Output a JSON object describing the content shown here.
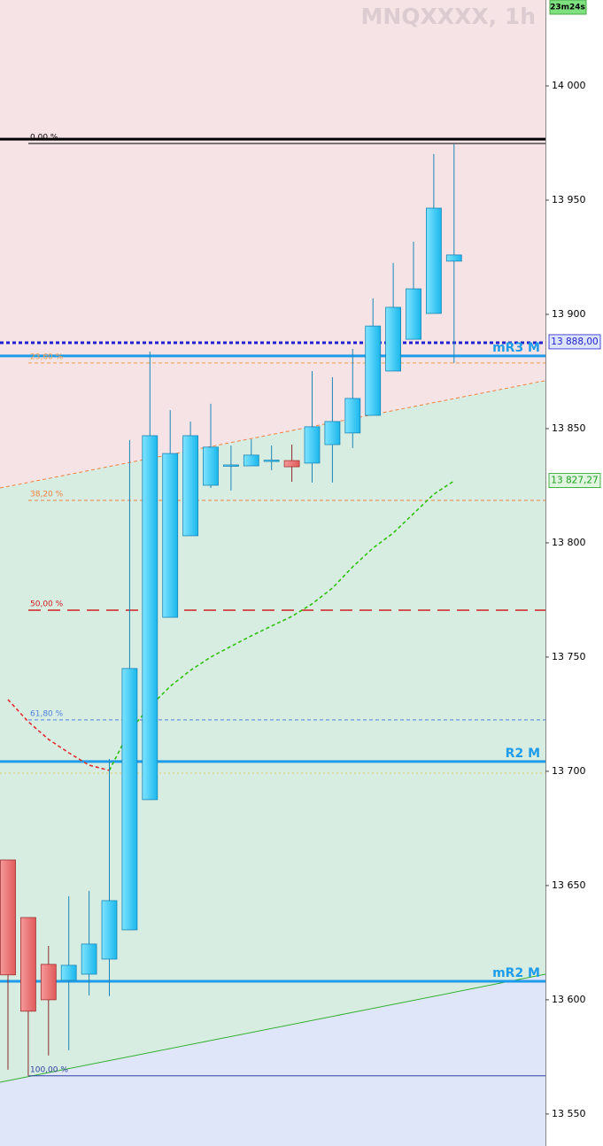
{
  "chart_data": {
    "type": "candlestick",
    "title": "MNQXXXX, 1h",
    "timer": "23m24s",
    "ylim": [
      13536,
      14037.6
    ],
    "yticks": [
      {
        "value": 14000,
        "label": "14 000"
      },
      {
        "value": 13950,
        "label": "13 950"
      },
      {
        "value": 13900,
        "label": "13 900"
      },
      {
        "value": 13850,
        "label": "13 850"
      },
      {
        "value": 13800,
        "label": "13 800"
      },
      {
        "value": 13750,
        "label": "13 750"
      },
      {
        "value": 13700,
        "label": "13 700"
      },
      {
        "value": 13650,
        "label": "13 650"
      },
      {
        "value": 13600,
        "label": "13 600"
      },
      {
        "value": 13550,
        "label": "13 550"
      }
    ],
    "up_color": "#3fd0f6",
    "down_color": "#ef7070",
    "candles": [
      {
        "open": 13661.2,
        "high": 13661.2,
        "low": 13569.4,
        "close": 13610.9
      },
      {
        "open": 13636.0,
        "high": 13636.0,
        "low": 13566.7,
        "close": 13595.0
      },
      {
        "open": 13615.5,
        "high": 13623.6,
        "low": 13575.6,
        "close": 13600.0
      },
      {
        "open": 13608.5,
        "high": 13645.3,
        "low": 13577.9,
        "close": 13615.1
      },
      {
        "open": 13611.2,
        "high": 13647.7,
        "low": 13601.9,
        "close": 13624.4
      },
      {
        "open": 13617.8,
        "high": 13705.4,
        "low": 13601.6,
        "close": 13643.4
      },
      {
        "open": 13630.6,
        "high": 13845.0,
        "low": 13630.6,
        "close": 13745.0
      },
      {
        "open": 13687.6,
        "high": 13883.7,
        "low": 13687.6,
        "close": 13846.9
      },
      {
        "open": 13767.4,
        "high": 13858.1,
        "low": 13767.4,
        "close": 13839.1
      },
      {
        "open": 13803.1,
        "high": 13853.1,
        "low": 13803.1,
        "close": 13846.9
      },
      {
        "open": 13825.2,
        "high": 13860.9,
        "low": 13824.0,
        "close": 13841.9
      },
      {
        "open": 13833.7,
        "high": 13842.6,
        "low": 13822.9,
        "close": 13834.1
      },
      {
        "open": 13833.7,
        "high": 13845.3,
        "low": 13833.7,
        "close": 13838.4
      },
      {
        "open": 13836.0,
        "high": 13842.6,
        "low": 13831.8,
        "close": 13836.2
      },
      {
        "open": 13836.0,
        "high": 13843.0,
        "low": 13826.7,
        "close": 13833.3
      },
      {
        "open": 13834.9,
        "high": 13875.2,
        "low": 13826.4,
        "close": 13850.8
      },
      {
        "open": 13843.0,
        "high": 13872.5,
        "low": 13826.4,
        "close": 13853.1
      },
      {
        "open": 13848.1,
        "high": 13884.9,
        "low": 13841.5,
        "close": 13863.2
      },
      {
        "open": 13855.8,
        "high": 13907.0,
        "low": 13855.8,
        "close": 13894.9
      },
      {
        "open": 13875.2,
        "high": 13922.5,
        "low": 13875.2,
        "close": 13903.1
      },
      {
        "open": 13889.1,
        "high": 13931.8,
        "low": 13889.1,
        "close": 13911.2
      },
      {
        "open": 13900.4,
        "high": 13970.2,
        "low": 13900.4,
        "close": 13946.5
      },
      {
        "open": 13923.3,
        "high": 13974.4,
        "low": 13878.7,
        "close": 13926.0
      }
    ],
    "lines": [
      {
        "color": "#e03030",
        "values": [
          13731.4,
          13721.7,
          13714.0,
          13708.1,
          13702.7,
          13700.4,
          null,
          null,
          null,
          null,
          null,
          null,
          null,
          null,
          null,
          null,
          null,
          null,
          null,
          null,
          null,
          null,
          null
        ]
      },
      {
        "color": "#30c010",
        "values": [
          null,
          null,
          null,
          null,
          null,
          13700.4,
          13717.8,
          13728.3,
          13737.2,
          13744.2,
          13750.0,
          13754.7,
          13759.3,
          13763.6,
          13767.8,
          13773.3,
          13780.2,
          13789.5,
          13797.7,
          13804.3,
          13812.8,
          13821.3,
          13827.1
        ]
      }
    ],
    "trendlines": [
      {
        "start": 13824.0,
        "end": 13871.0,
        "color": "#f08040",
        "style": "dashed"
      },
      {
        "start": 13563.9,
        "end": 13611.2,
        "color": "#30b030",
        "style": "solid"
      }
    ],
    "levels": [
      {
        "value": 13976.7,
        "color": "#000000",
        "style": "solid",
        "width": 3
      },
      {
        "value": 13974.8,
        "label": "0,00 %",
        "color": "#000000",
        "style": "solid",
        "width": 1,
        "label_side": "left"
      },
      {
        "value": 13887.6,
        "color": "#2020cc",
        "style": "dashed",
        "width": 3
      },
      {
        "value": 13881.8,
        "label": "mR3 M",
        "color": "#1e9be9",
        "style": "solid",
        "width": 3,
        "label_side": "right"
      },
      {
        "value": 13878.7,
        "label": "23,60 %",
        "color": "#f0a050",
        "style": "dashed",
        "width": 1,
        "label_side": "left"
      },
      {
        "value": 13818.6,
        "label": "38,20 %",
        "color": "#f08040",
        "style": "dashed",
        "width": 1,
        "label_side": "left"
      },
      {
        "value": 13770.5,
        "label": "50,00 %",
        "color": "#d02020",
        "style": "longdash",
        "width": 1.5,
        "label_side": "left"
      },
      {
        "value": 13722.5,
        "label": "61,80 %",
        "color": "#5080e0",
        "style": "dashed",
        "width": 1,
        "label_side": "left"
      },
      {
        "value": 13704.3,
        "label": "R2 M",
        "color": "#1e9be9",
        "style": "solid",
        "width": 3,
        "label_side": "right"
      },
      {
        "value": 13699.2,
        "color": "#e0d060",
        "style": "dotted",
        "width": 1
      },
      {
        "value": 13608.1,
        "label": "mR2 M",
        "color": "#1e9be9",
        "style": "solid",
        "width": 3,
        "label_side": "right"
      },
      {
        "value": 13566.7,
        "label": "100,00 %",
        "color": "#3040a0",
        "style": "solid",
        "width": 1,
        "label_side": "left"
      }
    ],
    "price_labels": [
      {
        "value": 13888,
        "label": "13 888,00",
        "color": "#2020cc",
        "background": "#dde4ff"
      },
      {
        "value": 13827.27,
        "label": "13 827,27",
        "color": "#20a020",
        "background": "#dff5df"
      }
    ]
  }
}
